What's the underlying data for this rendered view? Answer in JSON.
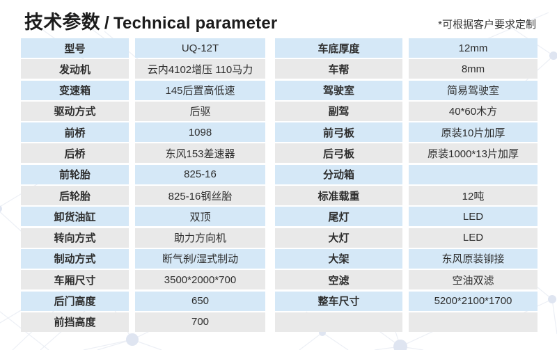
{
  "page": {
    "title_zh": "技术参数",
    "title_separator": "/",
    "title_en": "Technical parameter",
    "note": "*可根据客户要求定制"
  },
  "colors": {
    "row_blue": "#d5e8f7",
    "row_gray": "#e9e9e9",
    "title_text": "#1c1c1c",
    "cell_text": "#2d2d2d"
  },
  "tables": [
    {
      "name": "left",
      "rows": [
        {
          "label": "型号",
          "value": "UQ-12T"
        },
        {
          "label": "发动机",
          "value": "云内4102增压 110马力"
        },
        {
          "label": "变速箱",
          "value": "145后置高低速"
        },
        {
          "label": "驱动方式",
          "value": "后驱"
        },
        {
          "label": "前桥",
          "value": "1098"
        },
        {
          "label": "后桥",
          "value": "东风153差速器"
        },
        {
          "label": "前轮胎",
          "value": "825-16"
        },
        {
          "label": "后轮胎",
          "value": "825-16钢丝胎"
        },
        {
          "label": "卸货油缸",
          "value": "双顶"
        },
        {
          "label": "转向方式",
          "value": "助力方向机"
        },
        {
          "label": "制动方式",
          "value": "断气刹/湿式制动"
        },
        {
          "label": "车厢尺寸",
          "value": "3500*2000*700"
        },
        {
          "label": "后门高度",
          "value": "650"
        },
        {
          "label": "前挡高度",
          "value": "700"
        }
      ]
    },
    {
      "name": "right",
      "rows": [
        {
          "label": "车底厚度",
          "value": "12mm"
        },
        {
          "label": "车帮",
          "value": "8mm"
        },
        {
          "label": "驾驶室",
          "value": "简易驾驶室"
        },
        {
          "label": "副驾",
          "value": "40*60木方"
        },
        {
          "label": "前弓板",
          "value": "原装10片加厚"
        },
        {
          "label": "后弓板",
          "value": "原装1000*13片加厚"
        },
        {
          "label": "分动箱",
          "value": ""
        },
        {
          "label": "标准载重",
          "value": "12吨"
        },
        {
          "label": "尾灯",
          "value": "LED"
        },
        {
          "label": "大灯",
          "value": "LED"
        },
        {
          "label": "大架",
          "value": "东风原装铆接"
        },
        {
          "label": "空滤",
          "value": "空油双滤"
        },
        {
          "label": "整车尺寸",
          "value": "5200*2100*1700"
        },
        {
          "label": "",
          "value": ""
        }
      ]
    }
  ]
}
